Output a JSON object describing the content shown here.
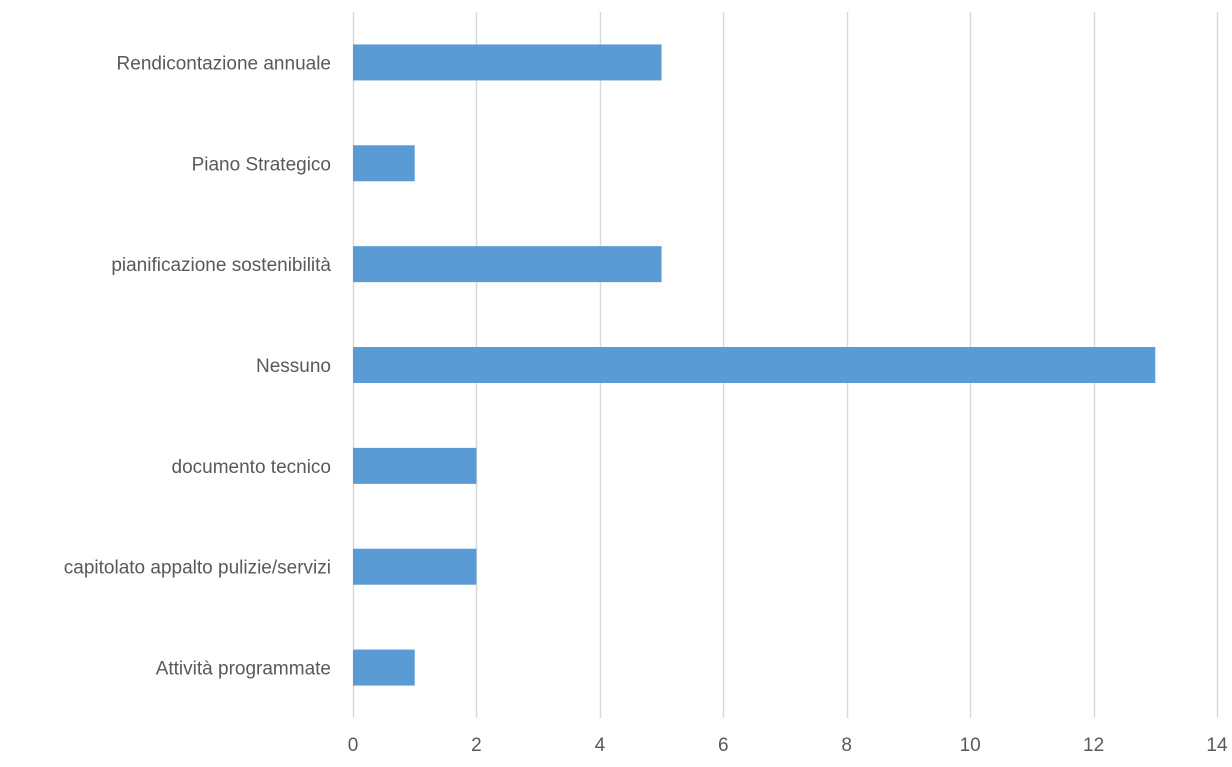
{
  "chart_data": {
    "type": "bar",
    "orientation": "horizontal",
    "title": "",
    "xlabel": "",
    "ylabel": "",
    "categories": [
      "Rendicontazione annuale",
      "Piano Strategico",
      "pianificazione sostenibilità",
      "Nessuno",
      "documento tecnico",
      "capitolato appalto pulizie/servizi",
      "Attività programmate"
    ],
    "values": [
      5,
      1,
      5,
      13,
      2,
      2,
      1
    ],
    "xlim": [
      0,
      14
    ],
    "x_ticks": [
      0,
      2,
      4,
      6,
      8,
      10,
      12,
      14
    ],
    "grid": "vertical",
    "legend": "none",
    "colors": {
      "bar": "#5B9BD5",
      "grid": "#D9D9D9",
      "text": "#595959"
    }
  }
}
